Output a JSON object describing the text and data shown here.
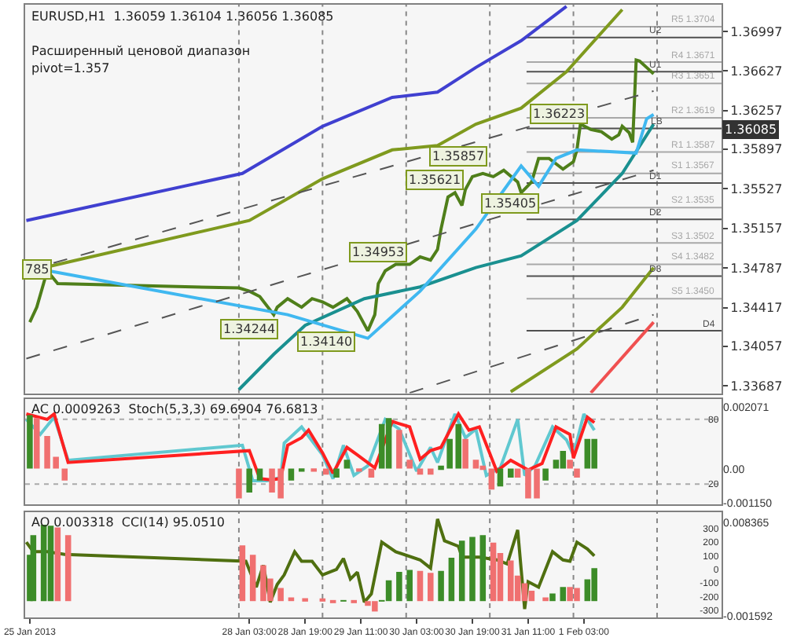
{
  "chart_data": [
    {
      "type": "line",
      "title": "EURUSD,H1  1.36059 1.36104 1.36056 1.36085",
      "tick_labels": "y",
      "xlim": [
        "2013-01-25T10:40",
        "2013-02-02T18:30"
      ],
      "ylim": [
        1.33617,
        1.37246
      ],
      "yticks": [
        1.36997,
        1.36627,
        1.36257,
        1.35897,
        1.35527,
        1.35157,
        1.34787,
        1.34417,
        1.34057,
        1.33687
      ],
      "annotations": [
        "Расширенный ценовой диапазон",
        "pivot=1.357",
        {
          "text": "785",
          "x": "2013-01-25T14:00",
          "y": 1.3478
        },
        {
          "text": "1.34244",
          "x": "2013-01-28T03:00",
          "y": 1.3422
        },
        {
          "text": "1.34140",
          "x": "2013-01-29T01:00",
          "y": 1.341
        },
        {
          "text": "1.34953",
          "x": "2013-01-29T16:00",
          "y": 1.3493
        },
        {
          "text": "1.35621",
          "x": "2013-01-30T08:00",
          "y": 1.3561
        },
        {
          "text": "1.35857",
          "x": "2013-01-30T15:00",
          "y": 1.3583
        },
        {
          "text": "1.35405",
          "x": "2013-01-31T06:00",
          "y": 1.3539
        },
        {
          "text": "1.36223",
          "x": "2013-01-31T20:00",
          "y": 1.3622
        },
        {
          "text": "1.36085",
          "y": 1.36085
        }
      ],
      "ref_lines": [
        {
          "axis": "x",
          "value": "2013-01-28T00:00",
          "color": "#888888",
          "line_style": "dotted"
        },
        {
          "axis": "x",
          "value": "2013-01-29T00:00",
          "color": "#888888",
          "line_style": "dotted"
        },
        {
          "axis": "x",
          "value": "2013-01-30T00:00",
          "color": "#888888",
          "line_style": "dotted"
        },
        {
          "axis": "x",
          "value": "2013-01-31T00:00",
          "color": "#888888",
          "line_style": "dotted"
        },
        {
          "axis": "x",
          "value": "2013-02-01T00:00",
          "color": "#888888",
          "line_style": "dotted"
        },
        {
          "axis": "x",
          "value": "2013-02-02T00:00",
          "color": "#888888",
          "line_style": "dotted"
        },
        {
          "axis": "y",
          "value": 1.3704,
          "label": "R5 1.3704",
          "color": "#a8a8a8"
        },
        {
          "axis": "y",
          "value": 1.3671,
          "label": "R4 1.3671",
          "color": "#a8a8a8"
        },
        {
          "axis": "y",
          "value": 1.3651,
          "label": "R3 1.3651",
          "color": "#a8a8a8"
        },
        {
          "axis": "y",
          "value": 1.3619,
          "label": "R2 1.3619",
          "color": "#a8a8a8"
        },
        {
          "axis": "y",
          "value": 1.3587,
          "label": "R1 1.3587",
          "color": "#a8a8a8"
        },
        {
          "axis": "y",
          "value": 1.3567,
          "label": "S1 1.3567",
          "color": "#a8a8a8"
        },
        {
          "axis": "y",
          "value": 1.3535,
          "label": "S2 1.3535",
          "color": "#a8a8a8"
        },
        {
          "axis": "y",
          "value": 1.3502,
          "label": "S3 1.3502",
          "color": "#a8a8a8"
        },
        {
          "axis": "y",
          "value": 1.3482,
          "label": "S4 1.3482",
          "color": "#a8a8a8"
        },
        {
          "axis": "y",
          "value": 1.345,
          "label": "S5 1.3450",
          "color": "#a8a8a8"
        },
        {
          "axis": "y",
          "value": 1.3694,
          "label": "U2",
          "color": "#505050"
        },
        {
          "axis": "y",
          "value": 1.3662,
          "label": "U1",
          "color": "#505050"
        },
        {
          "axis": "y",
          "value": 1.3609,
          "label": "LB",
          "color": "#505050"
        },
        {
          "axis": "y",
          "value": 1.3558,
          "label": "D1",
          "color": "#505050"
        },
        {
          "axis": "y",
          "value": 1.3524,
          "label": "D2",
          "color": "#505050"
        },
        {
          "axis": "y",
          "value": 1.3471,
          "label": "D3",
          "color": "#505050"
        },
        {
          "axis": "y",
          "value": 1.342,
          "label": "D4",
          "color": "#505050"
        }
      ],
      "series": [
        {
          "color": "#4f7f1a",
          "x": [
            "2013-01-25T12:00",
            "2013-01-25T14:00",
            "2013-01-25T17:00",
            "2013-01-25T20:00",
            "2013-01-28T00:00",
            "2013-01-28T03:00",
            "2013-01-28T06:00",
            "2013-01-28T10:00",
            "2013-01-28T11:00",
            "2013-01-28T14:00",
            "2013-01-28T18:00",
            "2013-01-28T21:00",
            "2013-01-29T00:00",
            "2013-01-29T03:00",
            "2013-01-29T07:00",
            "2013-01-29T10:00",
            "2013-01-29T13:00",
            "2013-01-29T15:00",
            "2013-01-29T16:00",
            "2013-01-29T18:00",
            "2013-01-29T21:00",
            "2013-01-30T01:00",
            "2013-01-30T04:00",
            "2013-01-30T07:00",
            "2013-01-30T09:00",
            "2013-01-30T10:00",
            "2013-01-30T12:00",
            "2013-01-30T14:00",
            "2013-01-30T16:00",
            "2013-01-30T17:00",
            "2013-01-30T19:00",
            "2013-01-30T22:00",
            "2013-01-31T01:00",
            "2013-01-31T04:00",
            "2013-01-31T08:00",
            "2013-01-31T09:00",
            "2013-01-31T12:00",
            "2013-01-31T14:00",
            "2013-01-31T17:00",
            "2013-01-31T21:00",
            "2013-02-01T00:00",
            "2013-02-01T01:00",
            "2013-02-01T02:00",
            "2013-02-01T05:00",
            "2013-02-01T08:00",
            "2013-02-01T11:00",
            "2013-02-01T13:00",
            "2013-02-01T14:00",
            "2013-02-01T16:00",
            "2013-02-01T17:00",
            "2013-02-01T18:00",
            "2013-02-01T19:00",
            "2013-02-01T21:00",
            "2013-02-01T23:00"
          ],
          "values": [
            1.3428,
            1.3442,
            1.3476,
            1.3464,
            1.346,
            1.3457,
            1.3452,
            1.3435,
            1.3442,
            1.345,
            1.3442,
            1.345,
            1.3447,
            1.3442,
            1.345,
            1.3438,
            1.342,
            1.3435,
            1.3464,
            1.3476,
            1.3482,
            1.3482,
            1.3489,
            1.3486,
            1.3496,
            1.3515,
            1.3545,
            1.3549,
            1.3537,
            1.3552,
            1.3564,
            1.3567,
            1.3564,
            1.357,
            1.3559,
            1.3549,
            1.3559,
            1.3581,
            1.3581,
            1.3571,
            1.3578,
            1.3589,
            1.3613,
            1.3608,
            1.3606,
            1.3599,
            1.3603,
            1.3611,
            1.3605,
            1.3596,
            1.3673,
            1.3672,
            1.3666,
            1.366
          ]
        },
        {
          "color": "#4040d0",
          "x": [
            "2013-01-25T11:00",
            "2013-01-28T01:00",
            "2013-01-29T00:00",
            "2013-01-29T20:00",
            "2013-01-30T09:00",
            "2013-01-30T20:00",
            "2013-01-31T09:00",
            "2013-01-31T22:00"
          ],
          "values": [
            1.3523,
            1.3567,
            1.3611,
            1.3638,
            1.3643,
            1.3666,
            1.3691,
            1.3723
          ]
        },
        {
          "color": "#7f9a1e",
          "x": [
            "2013-01-25T16:00",
            "2013-01-28T03:00",
            "2013-01-29T00:00",
            "2013-01-29T20:00",
            "2013-01-30T09:00",
            "2013-01-30T20:00",
            "2013-01-31T09:00",
            "2013-01-31T22:00",
            "2013-02-01T14:00"
          ],
          "values": [
            1.3479,
            1.3523,
            1.3562,
            1.3589,
            1.3593,
            1.3613,
            1.3628,
            1.3662,
            1.372
          ]
        },
        {
          "color": "#1a9090",
          "x": [
            "2013-01-28T00:00",
            "2013-01-28T10:00",
            "2013-01-28T19:00",
            "2013-01-29T12:00",
            "2013-01-30T04:00",
            "2013-01-30T20:00",
            "2013-01-31T09:00",
            "2013-02-01T01:00",
            "2013-02-01T14:00",
            "2013-02-01T23:00"
          ],
          "values": [
            1.3365,
            1.3398,
            1.3425,
            1.345,
            1.3461,
            1.3479,
            1.349,
            1.3523,
            1.3567,
            1.3613
          ]
        },
        {
          "color": "#7f9a1e",
          "x": [
            "2013-01-31T06:00",
            "2013-02-01T01:00",
            "2013-02-01T14:00",
            "2013-02-01T23:00"
          ],
          "values": [
            1.3363,
            1.3403,
            1.3442,
            1.3479
          ]
        },
        {
          "color": "#f05050",
          "x": [
            "2013-02-01T05:00",
            "2013-02-01T23:00"
          ],
          "values": [
            1.3362,
            1.3428
          ]
        },
        {
          "color": "#40b8f0",
          "x": [
            "2013-01-25T14:00",
            "2013-01-28T14:00",
            "2013-01-29T13:00",
            "2013-01-30T04:00",
            "2013-01-30T20:00",
            "2013-01-31T09:00",
            "2013-01-31T14:00",
            "2013-01-31T19:00",
            "2013-02-01T01:00",
            "2013-02-01T18:00",
            "2013-02-01T21:00",
            "2013-02-01T23:00"
          ],
          "values": [
            1.3478,
            1.3435,
            1.3413,
            1.3457,
            1.3515,
            1.3574,
            1.3555,
            1.3581,
            1.3589,
            1.3586,
            1.3618,
            1.3622
          ]
        },
        {
          "color": "#555555",
          "line_style": "dashed",
          "x": [
            "2013-01-25T11:00",
            "2013-02-01T23:00"
          ],
          "values": [
            1.3476,
            1.3644
          ]
        },
        {
          "color": "#555555",
          "line_style": "dashed",
          "x": [
            "2013-01-25T11:00",
            "2013-02-01T23:00"
          ],
          "values": [
            1.3394,
            1.357
          ]
        },
        {
          "color": "#555555",
          "line_style": "dashed",
          "x": [
            "2013-01-30T01:00",
            "2013-02-01T23:00"
          ],
          "values": [
            1.3362,
            1.3435
          ]
        }
      ]
    },
    {
      "type": "bar",
      "title": "AC 0.0009263  Stoch(5,3,3) 69.6904 76.6813",
      "tick_labels": "y",
      "xlim": [
        "2013-01-25T10:40",
        "2013-02-02T18:30"
      ],
      "ylim": [
        1.4,
        98.6
      ],
      "yticks": [
        80,
        20
      ],
      "y2lim": [
        -0.00119,
        0.00233
      ],
      "y2ticks": [
        0.002071,
        {
          "value": 0,
          "label": "0.00"
        },
        {
          "value": -0.00115,
          "label": "-0.001150"
        }
      ],
      "ref_lines": [
        {
          "axis": "x",
          "value": "2013-01-28T00:00",
          "color": "#888888",
          "line_style": "dotted"
        },
        {
          "axis": "x",
          "value": "2013-01-29T00:00",
          "color": "#888888",
          "line_style": "dotted"
        },
        {
          "axis": "x",
          "value": "2013-01-30T00:00",
          "color": "#888888",
          "line_style": "dotted"
        },
        {
          "axis": "x",
          "value": "2013-01-31T00:00",
          "color": "#888888",
          "line_style": "dotted"
        },
        {
          "axis": "x",
          "value": "2013-02-01T00:00",
          "color": "#888888",
          "line_style": "dotted"
        },
        {
          "axis": "x",
          "value": "2013-02-02T00:00",
          "color": "#888888",
          "line_style": "dotted"
        },
        {
          "axis": "y",
          "value": 80,
          "color": "#aaaaaa",
          "line_style": "dotted"
        },
        {
          "axis": "y",
          "value": 20,
          "color": "#aaaaaa",
          "line_style": "dotted"
        }
      ],
      "series": [
        {
          "type": "bar",
          "axis": "y2",
          "x": [
            "2013-01-25T12:00",
            "2013-01-25T14:00",
            "2013-01-25T17:00",
            "2013-01-25T19:30",
            "2013-01-25T22:00",
            "2013-01-28T00:00",
            "2013-01-28T03:00",
            "2013-01-28T06:00",
            "2013-01-28T09:30",
            "2013-01-28T12:00",
            "2013-01-28T15:00",
            "2013-01-28T18:00",
            "2013-01-28T21:30",
            "2013-01-29T01:00",
            "2013-01-29T04:00",
            "2013-01-29T07:00",
            "2013-01-29T10:30",
            "2013-01-29T14:00",
            "2013-01-29T17:00",
            "2013-01-29T19:00",
            "2013-01-29T22:00",
            "2013-01-30T01:00",
            "2013-01-30T04:00",
            "2013-01-30T07:00",
            "2013-01-30T10:00",
            "2013-01-30T12:30",
            "2013-01-30T15:00",
            "2013-01-30T17:00",
            "2013-01-30T20:00",
            "2013-01-30T22:00",
            "2013-01-31T00:30",
            "2013-01-31T03:00",
            "2013-01-31T06:00",
            "2013-01-31T08:00",
            "2013-01-31T11:00",
            "2013-01-31T13:30",
            "2013-01-31T16:00",
            "2013-01-31T19:00",
            "2013-01-31T21:00",
            "2013-01-31T23:00",
            "2013-02-01T01:00",
            "2013-02-01T04:00",
            "2013-02-01T06:00"
          ],
          "values": [
            0.0018,
            0.0017,
            0.0011,
            0.0004,
            -0.0004,
            -0.001,
            -0.0008,
            -0.0004,
            -0.0008,
            -0.001,
            -0.0004,
            -0.0001,
            -0.0001,
            -0.0002,
            -0.0003,
            0.0003,
            -0.0001,
            -0.0003,
            0.0015,
            0.0017,
            0.0013,
            0.0003,
            -0.0002,
            -0.0002,
            0.0001,
            0.001,
            0.0015,
            0.001,
            0.0003,
            0.0001,
            -0.0007,
            -0.0006,
            -0.0003,
            -0.0003,
            -0.001,
            -0.001,
            -0.0004,
            0.0003,
            0.0006,
            0.0003,
            -0.0003,
            0.001,
            0.001
          ],
          "colors": [
            "#3c8c28",
            "#f07070",
            "#f07070",
            "#f07070",
            "#f07070",
            "#f07070",
            "#3c8c28",
            "#3c8c28",
            "#f07070",
            "#f07070",
            "#3c8c28",
            "#3c8c28",
            "#f07070",
            "#f07070",
            "#3c8c28",
            "#3c8c28",
            "#f07070",
            "#f07070",
            "#3c8c28",
            "#3c8c28",
            "#f07070",
            "#f07070",
            "#f07070",
            "#f07070",
            "#3c8c28",
            "#3c8c28",
            "#3c8c28",
            "#f07070",
            "#f07070",
            "#f07070",
            "#f07070",
            "#3c8c28",
            "#3c8c28",
            "#f07070",
            "#f07070",
            "#f07070",
            "#3c8c28",
            "#3c8c28",
            "#3c8c28",
            "#f07070",
            "#f07070",
            "#3c8c28",
            "#3c8c28"
          ]
        },
        {
          "type": "line",
          "color": "#60c8d0",
          "x": [
            "2013-01-25T11:00",
            "2013-01-25T15:00",
            "2013-01-25T19:00",
            "2013-01-25T23:00",
            "2013-01-28T01:00",
            "2013-01-28T04:00",
            "2013-01-28T08:00",
            "2013-01-28T12:00",
            "2013-01-28T13:00",
            "2013-01-28T18:00",
            "2013-01-29T00:00",
            "2013-01-29T03:00",
            "2013-01-29T06:00",
            "2013-01-29T09:00",
            "2013-01-29T13:00",
            "2013-01-29T18:00",
            "2013-01-29T22:00",
            "2013-01-30T03:00",
            "2013-01-30T07:00",
            "2013-01-30T09:00",
            "2013-01-30T14:00",
            "2013-01-30T17:00",
            "2013-01-30T20:00",
            "2013-01-30T23:00",
            "2013-01-31T03:00",
            "2013-01-31T08:00",
            "2013-01-31T10:00",
            "2013-01-31T13:00",
            "2013-01-31T18:00",
            "2013-01-31T22:00",
            "2013-02-01T00:00",
            "2013-02-01T03:00",
            "2013-02-01T06:00"
          ],
          "values": [
            80,
            66,
            82,
            42,
            56,
            23,
            23,
            26,
            58,
            73,
            47,
            25,
            56,
            28,
            37,
            80,
            71,
            32,
            54,
            40,
            85,
            63,
            71,
            28,
            35,
            80,
            28,
            37,
            73,
            61,
            47,
            85,
            70
          ]
        },
        {
          "type": "line",
          "color": "#ff2020",
          "x": [
            "2013-01-25T11:00",
            "2013-01-25T17:00",
            "2013-01-25T19:00",
            "2013-01-25T23:00",
            "2013-01-28T03:00",
            "2013-01-28T06:00",
            "2013-01-28T09:00",
            "2013-01-28T12:00",
            "2013-01-28T14:00",
            "2013-01-28T18:00",
            "2013-01-28T20:00",
            "2013-01-29T00:00",
            "2013-01-29T03:00",
            "2013-01-29T07:00",
            "2013-01-29T10:00",
            "2013-01-29T15:00",
            "2013-01-29T20:00",
            "2013-01-30T01:00",
            "2013-01-30T04:00",
            "2013-01-30T07:00",
            "2013-01-30T10:00",
            "2013-01-30T15:00",
            "2013-01-30T18:00",
            "2013-01-30T21:00",
            "2013-01-31T02:00",
            "2013-01-31T06:00",
            "2013-01-31T11:00",
            "2013-01-31T15:00",
            "2013-01-31T19:00",
            "2013-01-31T23:00",
            "2013-02-01T00:00",
            "2013-02-01T04:00",
            "2013-02-01T06:00"
          ],
          "values": [
            85,
            80,
            85,
            40,
            51,
            25,
            24,
            25,
            56,
            63,
            70,
            49,
            30,
            54,
            47,
            35,
            78,
            73,
            43,
            51,
            54,
            85,
            70,
            73,
            32,
            42,
            33,
            39,
            73,
            66,
            44,
            82,
            77
          ]
        }
      ]
    },
    {
      "type": "bar",
      "title": "AO 0.003318  CCI(14) 95.0510",
      "xlim": [
        "2013-01-25T10:40",
        "2013-02-02T18:30"
      ],
      "ylim": [
        -352,
        421
      ],
      "yticks": [
        300,
        200,
        100,
        0,
        -100,
        -200,
        -300
      ],
      "y2lim": [
        -0.00173,
        0.00944
      ],
      "y2ticks": [
        0.008365,
        -0.001592
      ],
      "xticks": [
        {
          "value": "2013-01-25T12:00",
          "label": "25 Jan 2013"
        },
        {
          "value": "2013-01-28T03:00",
          "label": "28 Jan 03:00"
        },
        {
          "value": "2013-01-28T19:00",
          "label": "28 Jan 19:00"
        },
        {
          "value": "2013-01-29T11:00",
          "label": "29 Jan 11:00"
        },
        {
          "value": "2013-01-30T03:00",
          "label": "30 Jan 03:00"
        },
        {
          "value": "2013-01-30T19:00",
          "label": "30 Jan 19:00"
        },
        {
          "value": "2013-01-31T11:00",
          "label": "31 Jan 11:00"
        },
        {
          "value": "2013-02-01T03:00",
          "label": "1 Feb 03:00"
        }
      ],
      "ref_lines": [
        {
          "axis": "x",
          "value": "2013-01-28T00:00",
          "color": "#888888",
          "line_style": "dotted"
        },
        {
          "axis": "x",
          "value": "2013-01-29T00:00",
          "color": "#888888",
          "line_style": "dotted"
        },
        {
          "axis": "x",
          "value": "2013-01-30T00:00",
          "color": "#888888",
          "line_style": "dotted"
        },
        {
          "axis": "x",
          "value": "2013-01-31T00:00",
          "color": "#888888",
          "line_style": "dotted"
        },
        {
          "axis": "x",
          "value": "2013-02-01T00:00",
          "color": "#888888",
          "line_style": "dotted"
        },
        {
          "axis": "x",
          "value": "2013-02-02T00:00",
          "color": "#888888",
          "line_style": "dotted"
        }
      ],
      "series": [
        {
          "type": "bar",
          "axis": "y2",
          "x": [
            "2013-01-25T12:00",
            "2013-01-25T13:00",
            "2013-01-25T16:00",
            "2013-01-25T18:00",
            "2013-01-25T20:00",
            "2013-01-25T23:00",
            "2013-01-28T01:00",
            "2013-01-28T04:00",
            "2013-01-28T07:00",
            "2013-01-28T09:00",
            "2013-01-28T12:00",
            "2013-01-28T15:00",
            "2013-01-28T19:00",
            "2013-01-29T00:00",
            "2013-01-29T03:00",
            "2013-01-29T06:00",
            "2013-01-29T09:00",
            "2013-01-29T13:00",
            "2013-01-29T15:00",
            "2013-01-29T17:00",
            "2013-01-29T19:00",
            "2013-01-29T22:00",
            "2013-01-30T01:00",
            "2013-01-30T04:00",
            "2013-01-30T07:00",
            "2013-01-30T10:00",
            "2013-01-30T13:00",
            "2013-01-30T16:00",
            "2013-01-30T19:00",
            "2013-01-30T22:00",
            "2013-01-31T01:00",
            "2013-01-31T03:00",
            "2013-01-31T06:00",
            "2013-01-31T08:00",
            "2013-01-31T10:00",
            "2013-01-31T12:00",
            "2013-01-31T16:00",
            "2013-01-31T18:00",
            "2013-01-31T21:00",
            "2013-01-31T23:00",
            "2013-02-01T01:00",
            "2013-02-01T04:00",
            "2013-02-01T06:00"
          ],
          "values": [
            0.0049,
            0.007,
            0.0081,
            0.008,
            0.0078,
            0.007,
            0.0059,
            0.0049,
            0.0038,
            0.0024,
            0.0014,
            0.0004,
            0.0003,
            0.0002,
            -0.0001,
            0.0001,
            -0.0002,
            -0.0005,
            -0.0011,
            0.0001,
            0.0022,
            0.0031,
            0.0033,
            0.0032,
            0.003,
            0.0032,
            0.0046,
            0.0064,
            0.0068,
            0.007,
            0.0062,
            0.0051,
            0.0043,
            0.0027,
            0.0019,
            0.0011,
            0.0004,
            0.0008,
            0.0015,
            0.0015,
            0.0014,
            0.0023,
            0.0035
          ],
          "colors": [
            "#3c8c28",
            "#3c8c28",
            "#3c8c28",
            "#3c8c28",
            "#f07070",
            "#f07070",
            "#f07070",
            "#f07070",
            "#f07070",
            "#f07070",
            "#f07070",
            "#f07070",
            "#f07070",
            "#f07070",
            "#f07070",
            "#3c8c28",
            "#f07070",
            "#f07070",
            "#f07070",
            "#3c8c28",
            "#3c8c28",
            "#3c8c28",
            "#3c8c28",
            "#f07070",
            "#f07070",
            "#3c8c28",
            "#3c8c28",
            "#3c8c28",
            "#3c8c28",
            "#3c8c28",
            "#f07070",
            "#f07070",
            "#f07070",
            "#f07070",
            "#f07070",
            "#f07070",
            "#f07070",
            "#3c8c28",
            "#3c8c28",
            "#f07070",
            "#f07070",
            "#3c8c28",
            "#3c8c28"
          ]
        },
        {
          "type": "line",
          "color": "#4f6f10",
          "x": [
            "2013-01-25T11:00",
            "2013-01-25T13:00",
            "2013-01-25T17:00",
            "2013-01-25T22:00",
            "2013-01-28T02:00",
            "2013-01-28T05:00",
            "2013-01-28T07:00",
            "2013-01-28T09:00",
            "2013-01-28T11:00",
            "2013-01-28T13:00",
            "2013-01-28T16:00",
            "2013-01-28T18:00",
            "2013-01-28T21:00",
            "2013-01-29T00:00",
            "2013-01-29T04:00",
            "2013-01-29T06:00",
            "2013-01-29T08:00",
            "2013-01-29T10:00",
            "2013-01-29T12:00",
            "2013-01-29T14:00",
            "2013-01-29T17:00",
            "2013-01-29T21:00",
            "2013-01-30T04:00",
            "2013-01-30T07:00",
            "2013-01-30T09:00",
            "2013-01-30T11:00",
            "2013-01-30T15:00",
            "2013-01-30T16:00",
            "2013-01-30T21:00",
            "2013-01-31T02:00",
            "2013-01-31T05:00",
            "2013-01-31T08:00",
            "2013-01-31T09:00",
            "2013-01-31T10:00",
            "2013-01-31T11:00",
            "2013-01-31T14:00",
            "2013-01-31T18:00",
            "2013-01-31T21:00",
            "2013-01-31T23:00",
            "2013-02-01T01:00",
            "2013-02-01T04:00",
            "2013-02-01T06:00"
          ],
          "values": [
            200,
            130,
            130,
            110,
            60,
            -130,
            30,
            -240,
            -110,
            -40,
            130,
            60,
            60,
            -40,
            0,
            80,
            -70,
            -20,
            -240,
            -180,
            200,
            130,
            70,
            10,
            370,
            210,
            170,
            90,
            90,
            70,
            40,
            290,
            0,
            -290,
            -90,
            -130,
            130,
            70,
            60,
            200,
            150,
            100
          ]
        }
      ]
    }
  ]
}
